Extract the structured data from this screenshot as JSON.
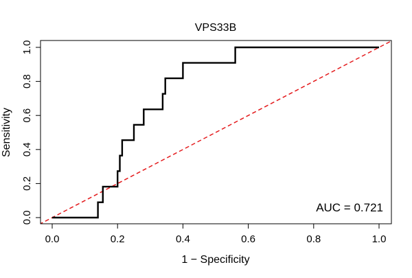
{
  "chart_data": {
    "type": "line",
    "title": "VPS33B",
    "xlabel": "1 − Specificity",
    "ylabel": "Sensitivity",
    "xlim": [
      0,
      1
    ],
    "ylim": [
      0,
      1
    ],
    "x_ticks": [
      0.0,
      0.2,
      0.4,
      0.6,
      0.8,
      1.0
    ],
    "x_tick_labels": [
      "0.0",
      "0.2",
      "0.4",
      "0.6",
      "0.8",
      "1.0"
    ],
    "y_ticks": [
      0.0,
      0.2,
      0.4,
      0.6,
      0.8,
      1.0
    ],
    "y_tick_labels": [
      "0.0",
      "0.2",
      "0.4",
      "0.6",
      "0.8",
      "1.0"
    ],
    "grid": false,
    "annotation": "AUC = 0.721",
    "series": [
      {
        "role": "roc-curve",
        "color": "#000000",
        "style": "solid",
        "step": true,
        "points": [
          [
            0.0,
            0.0
          ],
          [
            0.14,
            0.0
          ],
          [
            0.14,
            0.09
          ],
          [
            0.155,
            0.09
          ],
          [
            0.155,
            0.182
          ],
          [
            0.2,
            0.182
          ],
          [
            0.2,
            0.273
          ],
          [
            0.207,
            0.273
          ],
          [
            0.207,
            0.364
          ],
          [
            0.214,
            0.364
          ],
          [
            0.214,
            0.455
          ],
          [
            0.25,
            0.455
          ],
          [
            0.25,
            0.545
          ],
          [
            0.28,
            0.545
          ],
          [
            0.28,
            0.636
          ],
          [
            0.338,
            0.636
          ],
          [
            0.338,
            0.727
          ],
          [
            0.346,
            0.727
          ],
          [
            0.346,
            0.818
          ],
          [
            0.4,
            0.818
          ],
          [
            0.4,
            0.909
          ],
          [
            0.56,
            0.909
          ],
          [
            0.56,
            1.0
          ],
          [
            1.0,
            1.0
          ]
        ]
      },
      {
        "role": "reference-diagonal",
        "color": "#e41a1c",
        "style": "dashed",
        "points": [
          [
            -0.04,
            -0.04
          ],
          [
            1.04,
            1.04
          ]
        ]
      }
    ]
  }
}
